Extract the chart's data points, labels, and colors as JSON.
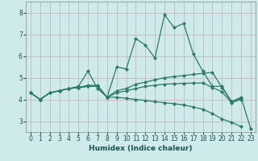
{
  "xlabel": "Humidex (Indice chaleur)",
  "xlim": [
    -0.5,
    23.5
  ],
  "ylim": [
    2.5,
    8.5
  ],
  "yticks": [
    3,
    4,
    5,
    6,
    7,
    8
  ],
  "xticks": [
    0,
    1,
    2,
    3,
    4,
    5,
    6,
    7,
    8,
    9,
    10,
    11,
    12,
    13,
    14,
    15,
    16,
    17,
    18,
    19,
    20,
    21,
    22,
    23
  ],
  "bg_color": "#ceeaea",
  "grid_color": "#c8b8b8",
  "line_color": "#2a7a6a",
  "lines": [
    [
      4.3,
      4.0,
      4.3,
      4.4,
      4.5,
      4.6,
      5.3,
      4.5,
      4.1,
      5.5,
      5.4,
      6.8,
      6.5,
      5.9,
      7.9,
      7.3,
      7.5,
      6.1,
      5.3,
      4.6,
      4.6,
      3.9,
      4.1,
      2.65
    ],
    [
      4.3,
      4.0,
      4.3,
      4.4,
      4.5,
      4.55,
      4.65,
      4.65,
      4.1,
      4.4,
      4.5,
      4.7,
      4.8,
      4.9,
      5.0,
      5.05,
      5.1,
      5.15,
      5.2,
      5.25,
      4.55,
      3.9,
      4.05,
      null
    ],
    [
      4.3,
      4.0,
      4.3,
      4.4,
      4.5,
      4.55,
      4.6,
      4.6,
      4.1,
      4.3,
      4.4,
      4.5,
      4.6,
      4.65,
      4.7,
      4.72,
      4.74,
      4.75,
      4.76,
      4.55,
      4.35,
      3.85,
      4.0,
      null
    ],
    [
      4.3,
      4.0,
      4.3,
      4.4,
      4.5,
      4.55,
      4.6,
      4.6,
      4.1,
      4.1,
      4.05,
      4.0,
      3.95,
      3.9,
      3.85,
      3.8,
      3.75,
      3.65,
      3.55,
      3.35,
      3.1,
      2.95,
      2.75,
      null
    ]
  ],
  "marker": "D",
  "markersize": 2.5,
  "linewidth": 0.9,
  "tick_fontsize": 5.5,
  "xlabel_fontsize": 6.5
}
